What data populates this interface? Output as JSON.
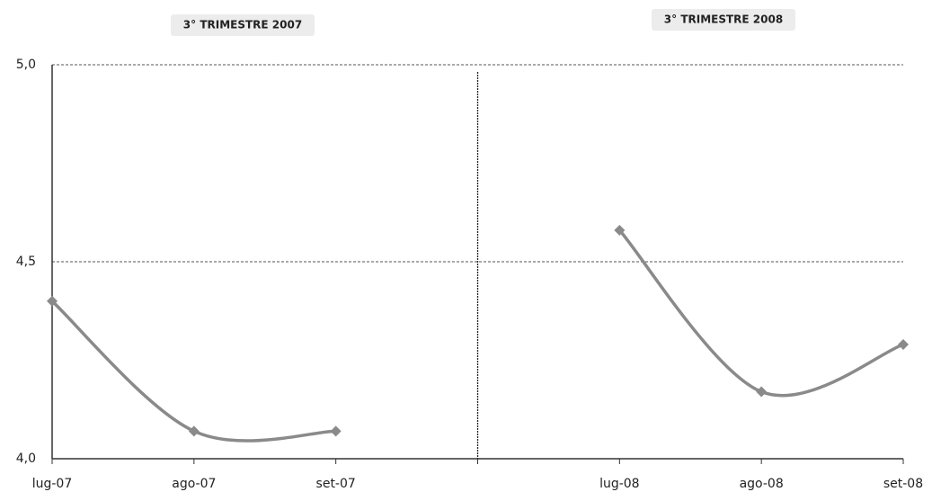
{
  "chart_data": {
    "type": "line",
    "annotations": [
      "3° TRIMESTRE 2007",
      "3° TRIMESTRE 2008"
    ],
    "categories": [
      "lug-07",
      "ago-07",
      "set-07",
      null,
      "lug-08",
      "ago-08",
      "set-08"
    ],
    "values": [
      4.4,
      4.07,
      4.07,
      null,
      4.58,
      4.17,
      4.29
    ],
    "color": "#8a8a8a",
    "ylim": [
      4.0,
      5.0
    ],
    "yticks": [
      {
        "value": 4.0,
        "label": "4,0"
      },
      {
        "value": 4.5,
        "label": "4,5"
      },
      {
        "value": 5.0,
        "label": "5,0"
      }
    ],
    "grid": true
  }
}
